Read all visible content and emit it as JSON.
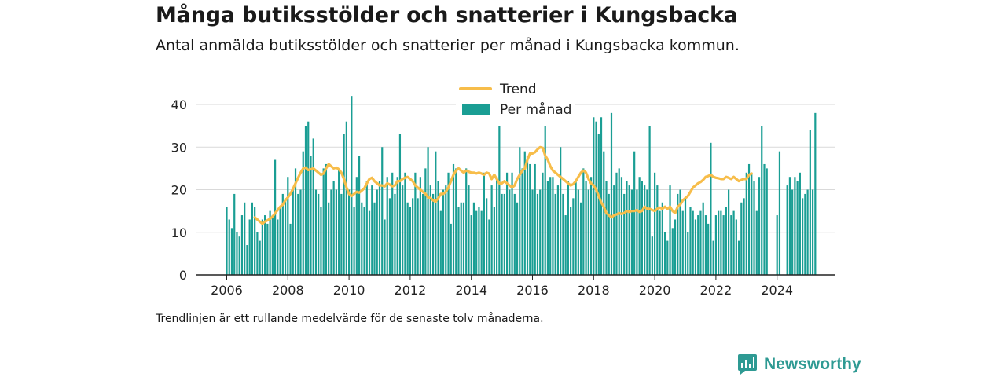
{
  "title": "Många butiksstölder och snatterier i Kungsbacka",
  "subtitle": "Antal anmälda butiksstölder och snatterier per månad i Kungsbacka kommun.",
  "footnote": "Trendlinjen är ett rullande medelvärde för de senaste tolv månaderna.",
  "brand": "Newsworthy",
  "colors": {
    "bars": "#1a9e94",
    "trend": "#f7bd4a",
    "grid": "#d9d9d9",
    "axis": "#222222",
    "brand": "#2e9a93"
  },
  "chart_data": {
    "type": "bar",
    "title": "",
    "xlabel": "",
    "ylabel": "",
    "ylim": [
      0,
      40
    ],
    "yticks": [
      0,
      10,
      20,
      30,
      40
    ],
    "xticks": [
      "2006",
      "2008",
      "2010",
      "2012",
      "2014",
      "2016",
      "2018",
      "2020",
      "2022",
      "2024"
    ],
    "grid": true,
    "legend": "top-center",
    "x_start": "2006-01",
    "series": [
      {
        "name": "Per månad",
        "type": "bar",
        "values": [
          16,
          13,
          11,
          19,
          10,
          9,
          14,
          17,
          7,
          13,
          17,
          16,
          10,
          8,
          13,
          14,
          12,
          15,
          14,
          27,
          13,
          16,
          19,
          18,
          23,
          12,
          20,
          25,
          19,
          20,
          29,
          35,
          36,
          28,
          32,
          20,
          19,
          16,
          25,
          26,
          17,
          20,
          22,
          20,
          25,
          19,
          33,
          36,
          20,
          42,
          16,
          23,
          28,
          17,
          16,
          22,
          15,
          21,
          17,
          20,
          22,
          30,
          13,
          23,
          18,
          24,
          19,
          23,
          33,
          21,
          24,
          17,
          16,
          18,
          24,
          18,
          23,
          19,
          25,
          30,
          21,
          19,
          29,
          22,
          15,
          20,
          21,
          24,
          12,
          26,
          25,
          16,
          17,
          17,
          25,
          21,
          14,
          17,
          15,
          16,
          15,
          24,
          18,
          13,
          21,
          16,
          23,
          35,
          19,
          19,
          24,
          20,
          24,
          19,
          17,
          30,
          25,
          29,
          28,
          26,
          20,
          26,
          19,
          20,
          24,
          35,
          22,
          23,
          23,
          19,
          21,
          30,
          19,
          14,
          22,
          16,
          18,
          22,
          20,
          17,
          25,
          22,
          20,
          23,
          37,
          36,
          33,
          37,
          29,
          22,
          19,
          38,
          21,
          24,
          25,
          23,
          19,
          22,
          21,
          20,
          29,
          20,
          23,
          22,
          21,
          20,
          35,
          9,
          24,
          21,
          15,
          17,
          10,
          8,
          21,
          11,
          13,
          19,
          20,
          15,
          18,
          10,
          16,
          15,
          13,
          14,
          15,
          17,
          14,
          12,
          31,
          8,
          14,
          15,
          15,
          14,
          16,
          20,
          14,
          15,
          13,
          8,
          17,
          18,
          24,
          26,
          24,
          22,
          15,
          23,
          35,
          26,
          25,
          0,
          0,
          0,
          14,
          29,
          0,
          0,
          21,
          23,
          20,
          23,
          22,
          24,
          18,
          19,
          20,
          34,
          20,
          38
        ]
      },
      {
        "name": "Trend",
        "type": "line",
        "start": "2006-12",
        "values": [
          13.5,
          13,
          12.5,
          12,
          12.5,
          12.8,
          13.2,
          13.7,
          14.5,
          15.2,
          16,
          16.5,
          17.5,
          18.2,
          19,
          20.2,
          21.5,
          22.8,
          24,
          25,
          25.2,
          24.6,
          24.8,
          25,
          24.5,
          24,
          23.5,
          23.8,
          25,
          26,
          25.5,
          25,
          25.2,
          24.8,
          24,
          22.5,
          20.5,
          19,
          18.5,
          19,
          19.5,
          19.3,
          19.8,
          20.3,
          21.5,
          22.5,
          22.8,
          22,
          21.5,
          21,
          21,
          20.8,
          21.5,
          21.2,
          20.8,
          21,
          22,
          22,
          22.5,
          22.8,
          23,
          22.5,
          22,
          21,
          20.5,
          20,
          19.5,
          19,
          18.2,
          18,
          17.5,
          17.2,
          18,
          19,
          19,
          19.5,
          20.5,
          22,
          23.5,
          24.5,
          25,
          24.5,
          24,
          24.5,
          24.2,
          24,
          24,
          23.8,
          24,
          23.8,
          23.5,
          24,
          23.8,
          22.5,
          23.5,
          22.5,
          21.5,
          21.5,
          22,
          21.5,
          21,
          20.5,
          21,
          22.5,
          23.5,
          24.5,
          25,
          27,
          28.5,
          28.5,
          28.8,
          29.5,
          30,
          29.8,
          28,
          27,
          25.5,
          24.5,
          24,
          23.5,
          23,
          22.5,
          22,
          21.5,
          21,
          21.3,
          22,
          23,
          24,
          24.5,
          24,
          22.5,
          21.5,
          21,
          20,
          18.5,
          17,
          16,
          14.5,
          14,
          13.5,
          14,
          14.2,
          14.5,
          14.3,
          14.5,
          15,
          14.8,
          15,
          15,
          15.2,
          14.8,
          15,
          16,
          15.5,
          15.5,
          15.2,
          15,
          15.5,
          15.8,
          15.5,
          16,
          15.5,
          16,
          15,
          14.5,
          16,
          16.5,
          17.5,
          18,
          18.5,
          19.5,
          20.5,
          21,
          21.5,
          21.8,
          22.3,
          23,
          23.2,
          23.5,
          23,
          22.8,
          22.7,
          22.5,
          22.5,
          23,
          22.8,
          22.5,
          23,
          22.5,
          22,
          22.3,
          22.5,
          22.5,
          23.5,
          23.8
        ]
      }
    ]
  }
}
